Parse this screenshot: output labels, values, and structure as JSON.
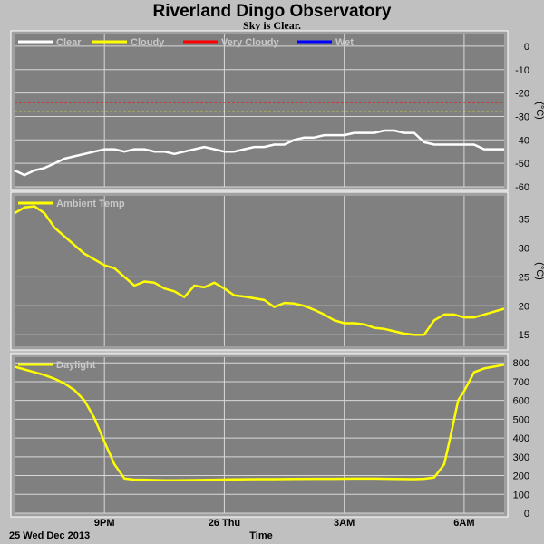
{
  "page": {
    "title": "Riverland Dingo Observatory",
    "subtitle": "Sky is Clear."
  },
  "colors": {
    "background": "#c0c0c0",
    "plot_background": "#808080",
    "grid": "#d8d8d8",
    "clear": "#ffffff",
    "cloudy": "#ffff00",
    "very_cloudy": "#ff0000",
    "wet": "#0000ff"
  },
  "chart_data": [
    {
      "type": "line",
      "name": "sky-temp",
      "unit": "(°C)",
      "ylim": [
        -60,
        5
      ],
      "yticks": [
        0,
        -10,
        -20,
        -30,
        -40,
        -50,
        -60
      ],
      "grid": true,
      "legend": [
        "Clear",
        "Cloudy",
        "Very Cloudy",
        "Wet"
      ],
      "legend_colors": [
        "#ffffff",
        "#ffff00",
        "#ff0000",
        "#0000ff"
      ],
      "thresholds": [
        {
          "label": "Very Cloudy",
          "value": -24,
          "color": "#ff0000"
        },
        {
          "label": "Cloudy",
          "value": -28,
          "color": "#ffff00"
        }
      ],
      "series": [
        {
          "name": "Clear",
          "color": "#ffffff",
          "x": [
            0,
            0.25,
            0.5,
            0.75,
            1,
            1.25,
            1.5,
            1.75,
            2,
            2.25,
            2.5,
            2.75,
            3,
            3.25,
            3.5,
            3.75,
            4,
            4.25,
            4.5,
            4.75,
            5,
            5.25,
            5.5,
            5.75,
            6,
            6.25,
            6.5,
            6.75,
            7,
            7.25,
            7.5,
            7.75,
            8,
            8.25,
            8.5,
            8.75,
            9,
            9.25,
            9.5,
            9.75,
            10,
            10.25,
            10.5,
            10.75,
            11,
            11.25,
            11.5,
            11.75,
            12,
            12.25
          ],
          "values": [
            -53,
            -55,
            -53,
            -52,
            -50,
            -48,
            -47,
            -46,
            -45,
            -44,
            -44,
            -45,
            -44,
            -44,
            -45,
            -45,
            -46,
            -45,
            -44,
            -43,
            -44,
            -45,
            -45,
            -44,
            -43,
            -43,
            -42,
            -42,
            -40,
            -39,
            -39,
            -38,
            -38,
            -38,
            -37,
            -37,
            -37,
            -36,
            -36,
            -37,
            -37,
            -41,
            -42,
            -42,
            -42,
            -42,
            -42,
            -44,
            -44,
            -44
          ]
        }
      ]
    },
    {
      "type": "line",
      "name": "ambient-temp",
      "unit": "(°C)",
      "ylim": [
        13,
        39
      ],
      "yticks": [
        35,
        30,
        25,
        20,
        15
      ],
      "grid": true,
      "legend": [
        "Ambient Temp"
      ],
      "legend_colors": [
        "#ffff00"
      ],
      "series": [
        {
          "name": "Ambient Temp",
          "color": "#ffff00",
          "x": [
            0,
            0.25,
            0.5,
            0.75,
            1,
            1.25,
            1.5,
            1.75,
            2,
            2.25,
            2.5,
            2.75,
            3,
            3.25,
            3.5,
            3.75,
            4,
            4.25,
            4.5,
            4.75,
            5,
            5.25,
            5.5,
            5.75,
            6,
            6.25,
            6.5,
            6.75,
            7,
            7.25,
            7.5,
            7.75,
            8,
            8.25,
            8.5,
            8.75,
            9,
            9.25,
            9.5,
            9.75,
            10,
            10.25,
            10.5,
            10.75,
            11,
            11.25,
            11.5,
            11.75,
            12,
            12.25
          ],
          "values": [
            36,
            37,
            37.2,
            36,
            33.5,
            32,
            30.5,
            29,
            28,
            27,
            26.5,
            25,
            23.5,
            24.2,
            24,
            23,
            22.5,
            21.5,
            23.5,
            23.2,
            24,
            23,
            21.8,
            21.6,
            21.3,
            21,
            19.8,
            20.5,
            20.4,
            20,
            19.3,
            18.5,
            17.5,
            17,
            17,
            16.8,
            16.2,
            16,
            15.6,
            15.2,
            15,
            15,
            17.5,
            18.5,
            18.5,
            18,
            18,
            18.5,
            19,
            19.5
          ]
        }
      ]
    },
    {
      "type": "line",
      "name": "daylight",
      "unit": "",
      "ylim": [
        0,
        830
      ],
      "yticks": [
        800,
        700,
        600,
        500,
        400,
        300,
        200,
        100,
        0
      ],
      "grid": true,
      "legend": [
        "Daylight"
      ],
      "legend_colors": [
        "#ffff00"
      ],
      "series": [
        {
          "name": "Daylight",
          "color": "#ffff00",
          "x": [
            0,
            0.25,
            0.5,
            0.75,
            1,
            1.25,
            1.5,
            1.75,
            2,
            2.25,
            2.5,
            2.75,
            3,
            3.25,
            3.5,
            3.75,
            4,
            4.5,
            5,
            5.5,
            6,
            6.5,
            7,
            7.5,
            8,
            8.5,
            9,
            9.5,
            10,
            10.25,
            10.5,
            10.75,
            10.9,
            11,
            11.1,
            11.25,
            11.4,
            11.5,
            11.75,
            12,
            12.25
          ],
          "values": [
            780,
            765,
            750,
            735,
            715,
            690,
            655,
            600,
            505,
            380,
            260,
            185,
            178,
            178,
            176,
            175,
            175,
            176,
            178,
            180,
            181,
            181,
            182,
            183,
            183,
            184,
            184,
            182,
            181,
            183,
            190,
            260,
            400,
            500,
            600,
            650,
            710,
            750,
            770,
            780,
            790
          ]
        }
      ]
    }
  ],
  "x_axis": {
    "tick_labels": [
      "9PM",
      "26 Thu",
      "3AM",
      "6AM"
    ],
    "tick_positions": [
      2.25,
      5.25,
      8.25,
      11.25
    ],
    "start_label": "25 Wed Dec 2013",
    "label": "Time"
  }
}
